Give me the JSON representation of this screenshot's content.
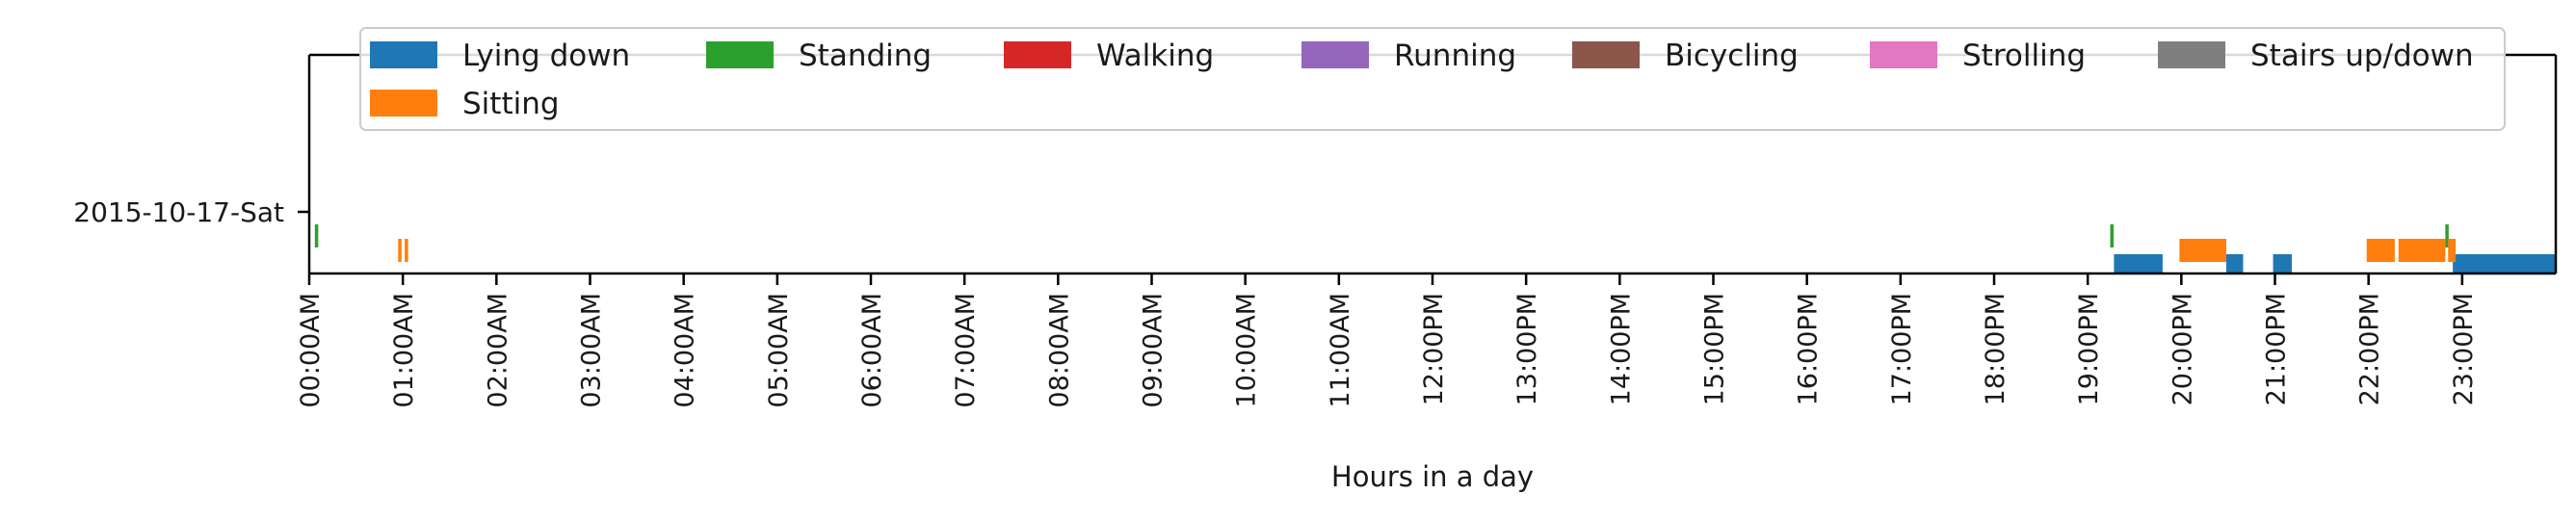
{
  "chart_data": {
    "type": "timeline",
    "title": "",
    "xlabel": "Hours in a day",
    "ylabel": "",
    "xlim": [
      0,
      24
    ],
    "grid": false,
    "legend_position": "top",
    "y_categories": [
      "2015-10-17-Sat"
    ],
    "x_ticks": [
      {
        "value": 0,
        "label": "00:00AM"
      },
      {
        "value": 1,
        "label": "01:00AM"
      },
      {
        "value": 2,
        "label": "02:00AM"
      },
      {
        "value": 3,
        "label": "03:00AM"
      },
      {
        "value": 4,
        "label": "04:00AM"
      },
      {
        "value": 5,
        "label": "05:00AM"
      },
      {
        "value": 6,
        "label": "06:00AM"
      },
      {
        "value": 7,
        "label": "07:00AM"
      },
      {
        "value": 8,
        "label": "08:00AM"
      },
      {
        "value": 9,
        "label": "09:00AM"
      },
      {
        "value": 10,
        "label": "10:00AM"
      },
      {
        "value": 11,
        "label": "11:00AM"
      },
      {
        "value": 12,
        "label": "12:00PM"
      },
      {
        "value": 13,
        "label": "13:00PM"
      },
      {
        "value": 14,
        "label": "14:00PM"
      },
      {
        "value": 15,
        "label": "15:00PM"
      },
      {
        "value": 16,
        "label": "16:00PM"
      },
      {
        "value": 17,
        "label": "17:00PM"
      },
      {
        "value": 18,
        "label": "18:00PM"
      },
      {
        "value": 19,
        "label": "19:00PM"
      },
      {
        "value": 20,
        "label": "20:00PM"
      },
      {
        "value": 21,
        "label": "21:00PM"
      },
      {
        "value": 22,
        "label": "22:00PM"
      },
      {
        "value": 23,
        "label": "23:00PM"
      }
    ],
    "series": [
      {
        "name": "Lying down",
        "color": "#1f77b4",
        "intervals": [
          [
            19.28,
            19.8
          ],
          [
            20.48,
            20.66
          ],
          [
            20.98,
            21.18
          ],
          [
            22.9,
            24.0
          ]
        ]
      },
      {
        "name": "Standing",
        "color": "#2ca02c",
        "intervals": [
          [
            0.06,
            0.09
          ],
          [
            19.24,
            19.27
          ],
          [
            22.82,
            22.85
          ]
        ]
      },
      {
        "name": "Walking",
        "color": "#d62728",
        "intervals": []
      },
      {
        "name": "Running",
        "color": "#9467bd",
        "intervals": []
      },
      {
        "name": "Bicycling",
        "color": "#8c564b",
        "intervals": []
      },
      {
        "name": "Strolling",
        "color": "#e377c2",
        "intervals": []
      },
      {
        "name": "Stairs up/down",
        "color": "#7f7f7f",
        "intervals": []
      },
      {
        "name": "Sitting",
        "color": "#ff7f0e",
        "intervals": [
          [
            0.95,
            0.98
          ],
          [
            1.02,
            1.05
          ],
          [
            19.98,
            20.48
          ],
          [
            21.98,
            22.28
          ],
          [
            22.32,
            22.82
          ],
          [
            22.85,
            22.93
          ]
        ]
      }
    ]
  }
}
